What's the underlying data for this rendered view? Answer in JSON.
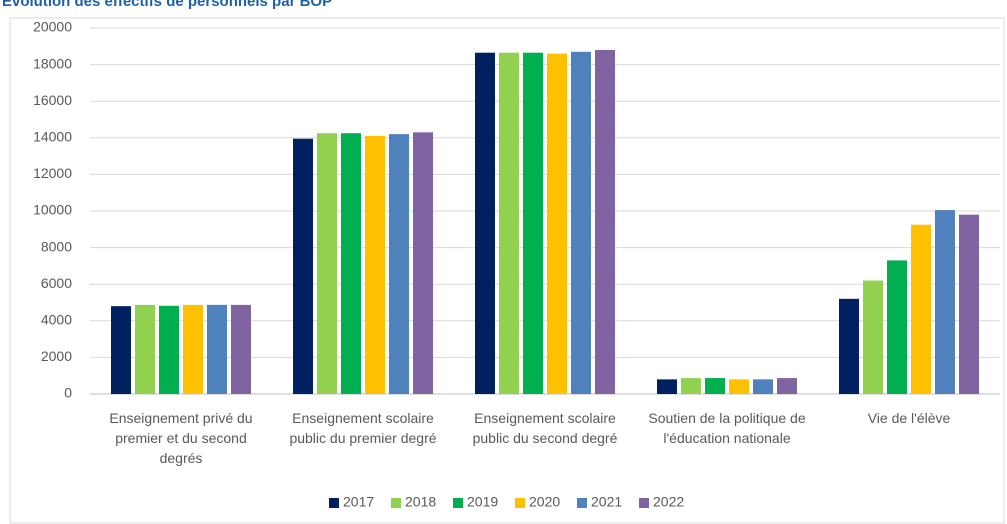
{
  "chart_data": {
    "type": "bar",
    "title": "Évolution des effectifs de personnels par BOP",
    "categories": [
      "Enseignement privé du premier et du second degrés",
      "Enseignement scolaire public du premier degré",
      "Enseignement scolaire public du second degré",
      "Soutien de la politique de l'éducation nationale",
      "Vie de l'élève"
    ],
    "series": [
      {
        "name": "2017",
        "color": "#002060",
        "values": [
          4800,
          13950,
          18650,
          800,
          5200
        ]
      },
      {
        "name": "2018",
        "color": "#92d050",
        "values": [
          4870,
          14250,
          18650,
          870,
          6200
        ]
      },
      {
        "name": "2019",
        "color": "#00b050",
        "values": [
          4820,
          14250,
          18650,
          870,
          7300
        ]
      },
      {
        "name": "2020",
        "color": "#ffc000",
        "values": [
          4870,
          14100,
          18600,
          800,
          9250
        ]
      },
      {
        "name": "2021",
        "color": "#4f81bd",
        "values": [
          4870,
          14200,
          18700,
          800,
          10050
        ]
      },
      {
        "name": "2022",
        "color": "#8064a2",
        "values": [
          4870,
          14300,
          18800,
          870,
          9800
        ]
      }
    ],
    "ylim": [
      0,
      20000
    ],
    "yticks": [
      0,
      2000,
      4000,
      6000,
      8000,
      10000,
      12000,
      14000,
      16000,
      18000,
      20000
    ],
    "grid": true,
    "legend": "bottom"
  }
}
